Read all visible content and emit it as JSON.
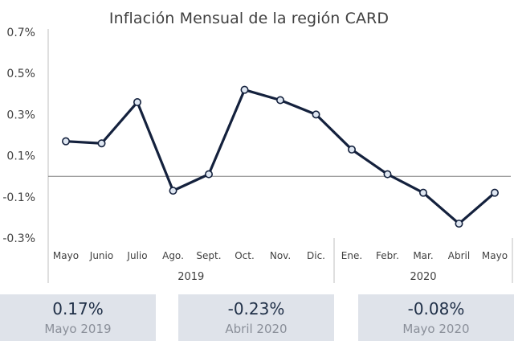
{
  "chart_data": {
    "type": "line",
    "title": "Inflación Mensual de la región CARD",
    "yticks": [
      "0.7%",
      "0.5%",
      "0.3%",
      "0.1%",
      "-0.1%",
      "-0.3%"
    ],
    "ylim": [
      -0.3,
      0.7
    ],
    "grid": false,
    "categories": [
      "Mayo",
      "Junio",
      "Julio",
      "Ago.",
      "Sept.",
      "Oct.",
      "Nov.",
      "Dic.",
      "Ene.",
      "Febr.",
      "Mar.",
      "Abril",
      "Mayo"
    ],
    "groups": [
      {
        "label": "2019",
        "start": 0,
        "end": 7
      },
      {
        "label": "2020",
        "start": 8,
        "end": 12
      }
    ],
    "series": [
      {
        "values": [
          0.17,
          0.16,
          0.36,
          -0.07,
          0.01,
          0.42,
          0.37,
          0.3,
          0.13,
          0.01,
          -0.08,
          -0.23,
          -0.08
        ]
      }
    ],
    "line_color": "#14213d",
    "marker_fill": "#dfe7f2"
  },
  "cards": [
    {
      "value": "0.17%",
      "label": "Mayo 2019"
    },
    {
      "value": "-0.23%",
      "label": "Abril 2020"
    },
    {
      "value": "-0.08%",
      "label": "Mayo 2020"
    }
  ]
}
